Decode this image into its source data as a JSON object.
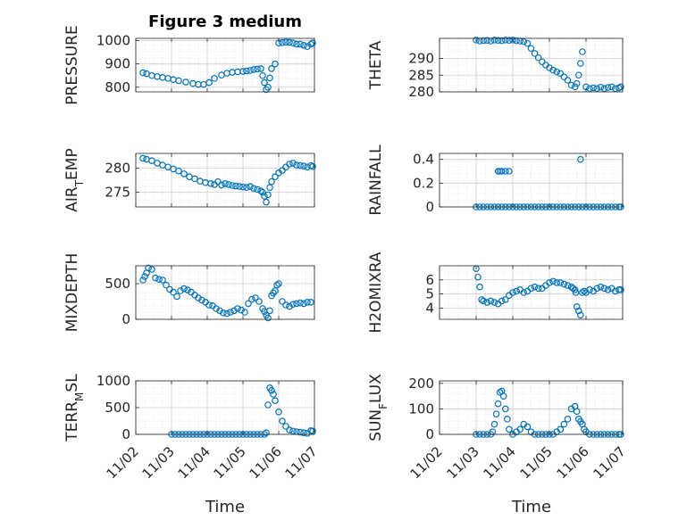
{
  "figure": {
    "title": "Figure 3 medium",
    "x_label": "Time"
  },
  "colors": {
    "marker": "#0072BD",
    "axis": "#262626",
    "grid": "#dcdcdc",
    "background": "#ffffff"
  },
  "chart_data": [
    {
      "type": "scatter",
      "ylabel": "PRESSURE",
      "title": "Figure 3 medium",
      "xlim": [
        0,
        5
      ],
      "ylim": [
        780,
        1010
      ],
      "yticks": [
        800,
        900,
        1000
      ],
      "xticks": [
        "11/02",
        "11/03",
        "11/04",
        "11/05",
        "11/06",
        "11/07"
      ],
      "show_xticklabels": false,
      "grid": true,
      "series": [
        {
          "x": [
            0.2,
            0.3,
            0.45,
            0.6,
            0.75,
            0.9,
            1.05,
            1.2,
            1.4,
            1.6,
            1.75,
            1.9,
            2.05,
            2.2,
            2.4,
            2.55,
            2.7,
            2.85,
            3.0,
            3.1,
            3.2,
            3.3,
            3.4,
            3.5,
            3.55,
            3.6,
            3.65,
            3.7,
            3.75,
            3.8,
            3.9,
            4.0,
            4.1,
            4.2,
            4.3,
            4.4,
            4.5,
            4.6,
            4.7,
            4.8,
            4.9,
            4.95
          ],
          "y": [
            862,
            858,
            850,
            846,
            842,
            838,
            833,
            828,
            822,
            816,
            812,
            812,
            820,
            838,
            852,
            860,
            864,
            866,
            868,
            870,
            872,
            876,
            878,
            880,
            850,
            820,
            790,
            800,
            840,
            880,
            900,
            990,
            992,
            994,
            993,
            990,
            985,
            985,
            980,
            975,
            985,
            990
          ]
        }
      ]
    },
    {
      "type": "scatter",
      "ylabel": "THETA",
      "xlim": [
        0,
        5
      ],
      "ylim": [
        280,
        296
      ],
      "yticks": [
        280,
        285,
        290
      ],
      "xticks": [
        "11/02",
        "11/03",
        "11/04",
        "11/05",
        "11/06",
        "11/07"
      ],
      "show_xticklabels": false,
      "grid": true,
      "series": [
        {
          "x": [
            1.0,
            1.1,
            1.2,
            1.3,
            1.4,
            1.5,
            1.6,
            1.7,
            1.8,
            1.9,
            2.0,
            2.1,
            2.2,
            2.3,
            2.4,
            2.5,
            2.6,
            2.7,
            2.8,
            2.9,
            3.0,
            3.1,
            3.2,
            3.3,
            3.4,
            3.5,
            3.6,
            3.7,
            3.75,
            3.8,
            3.85,
            3.9,
            4.0,
            4.1,
            4.2,
            4.3,
            4.4,
            4.5,
            4.6,
            4.7,
            4.8,
            4.9,
            4.95
          ],
          "y": [
            295.5,
            295.2,
            295.3,
            295.4,
            295.2,
            295.5,
            295.4,
            295.3,
            295.5,
            295.4,
            295.5,
            295.3,
            295.2,
            295.0,
            294.5,
            293.0,
            291.5,
            290.2,
            289.0,
            288.0,
            287.2,
            286.5,
            286.0,
            285.5,
            284.5,
            283.5,
            282.0,
            281.5,
            282.5,
            285.0,
            288.5,
            292.0,
            281.5,
            281.0,
            281.2,
            281.0,
            281.4,
            281.0,
            281.3,
            281.5,
            281.0,
            281.2,
            281.5
          ]
        }
      ]
    },
    {
      "type": "scatter",
      "ylabel": "AIR_TEMP",
      "xlim": [
        0,
        5
      ],
      "ylim": [
        272,
        283
      ],
      "yticks": [
        275,
        280
      ],
      "xticks": [
        "11/02",
        "11/03",
        "11/04",
        "11/05",
        "11/06",
        "11/07"
      ],
      "show_xticklabels": false,
      "grid": true,
      "series": [
        {
          "x": [
            0.2,
            0.3,
            0.45,
            0.6,
            0.75,
            0.9,
            1.05,
            1.2,
            1.35,
            1.5,
            1.65,
            1.8,
            1.95,
            2.1,
            2.2,
            2.3,
            2.4,
            2.5,
            2.6,
            2.7,
            2.8,
            2.9,
            3.0,
            3.1,
            3.2,
            3.3,
            3.4,
            3.5,
            3.55,
            3.6,
            3.65,
            3.7,
            3.75,
            3.8,
            3.9,
            4.0,
            4.1,
            4.2,
            4.3,
            4.4,
            4.5,
            4.6,
            4.7,
            4.8,
            4.9,
            4.95
          ],
          "y": [
            282.0,
            281.8,
            281.5,
            281.0,
            280.6,
            280.2,
            279.8,
            279.4,
            278.8,
            278.2,
            277.8,
            277.3,
            277.0,
            276.8,
            276.6,
            277.2,
            276.5,
            276.8,
            276.6,
            276.4,
            276.3,
            276.2,
            276.1,
            276.0,
            276.2,
            275.8,
            275.6,
            275.3,
            275.0,
            274.2,
            273.0,
            274.5,
            276.0,
            277.2,
            278.2,
            279.0,
            279.5,
            280.2,
            280.8,
            281.0,
            280.6,
            280.5,
            280.4,
            280.2,
            280.5,
            280.3
          ]
        }
      ]
    },
    {
      "type": "scatter",
      "ylabel": "RAINFALL",
      "xlim": [
        0,
        5
      ],
      "ylim": [
        0,
        0.45
      ],
      "yticks": [
        0,
        0.2,
        0.4
      ],
      "xticks": [
        "11/02",
        "11/03",
        "11/04",
        "11/05",
        "11/06",
        "11/07"
      ],
      "show_xticklabels": false,
      "grid": true,
      "series": [
        {
          "x": [
            1.0,
            1.1,
            1.2,
            1.3,
            1.4,
            1.5,
            1.6,
            1.7,
            1.8,
            1.9,
            2.0,
            2.1,
            2.2,
            2.3,
            2.4,
            2.5,
            2.6,
            2.7,
            2.8,
            2.9,
            3.0,
            3.1,
            3.2,
            3.3,
            3.4,
            3.5,
            3.6,
            3.7,
            3.8,
            3.9,
            4.0,
            4.1,
            4.2,
            4.3,
            4.4,
            4.5,
            4.6,
            4.7,
            4.8,
            4.9,
            4.95,
            1.6,
            1.65,
            1.7,
            1.8,
            1.9,
            3.85
          ],
          "y": [
            0,
            0,
            0,
            0,
            0,
            0,
            0,
            0,
            0,
            0,
            0,
            0,
            0,
            0,
            0,
            0,
            0,
            0,
            0,
            0,
            0,
            0,
            0,
            0,
            0,
            0,
            0,
            0,
            0,
            0,
            0,
            0,
            0,
            0,
            0,
            0,
            0,
            0,
            0,
            0,
            0,
            0.3,
            0.3,
            0.3,
            0.3,
            0.3,
            0.4
          ]
        }
      ]
    },
    {
      "type": "scatter",
      "ylabel": "MIXDEPTH",
      "xlim": [
        0,
        5
      ],
      "ylim": [
        0,
        750
      ],
      "yticks": [
        0,
        500
      ],
      "xticks": [
        "11/02",
        "11/03",
        "11/04",
        "11/05",
        "11/06",
        "11/07"
      ],
      "show_xticklabels": false,
      "grid": true,
      "series": [
        {
          "x": [
            0.2,
            0.25,
            0.3,
            0.35,
            0.45,
            0.55,
            0.65,
            0.75,
            0.85,
            0.95,
            1.05,
            1.15,
            1.25,
            1.35,
            1.45,
            1.55,
            1.65,
            1.75,
            1.85,
            1.95,
            2.05,
            2.15,
            2.25,
            2.35,
            2.45,
            2.55,
            2.65,
            2.75,
            2.85,
            2.95,
            3.05,
            3.15,
            3.25,
            3.35,
            3.45,
            3.55,
            3.6,
            3.65,
            3.7,
            3.75,
            3.8,
            3.85,
            3.9,
            3.95,
            4.0,
            4.1,
            4.2,
            4.3,
            4.4,
            4.5,
            4.6,
            4.7,
            4.8,
            4.9
          ],
          "y": [
            550,
            600,
            650,
            720,
            700,
            580,
            560,
            550,
            480,
            420,
            380,
            320,
            400,
            430,
            410,
            380,
            340,
            300,
            270,
            240,
            200,
            190,
            150,
            120,
            90,
            80,
            100,
            120,
            150,
            130,
            100,
            220,
            280,
            300,
            250,
            150,
            110,
            60,
            20,
            120,
            330,
            370,
            400,
            480,
            500,
            250,
            200,
            180,
            210,
            220,
            230,
            220,
            240,
            240
          ]
        }
      ]
    },
    {
      "type": "scatter",
      "ylabel": "H2OMIXRA",
      "xlim": [
        0,
        5
      ],
      "ylim": [
        3.2,
        7.0
      ],
      "yticks": [
        4,
        5,
        6
      ],
      "xticks": [
        "11/02",
        "11/03",
        "11/04",
        "11/05",
        "11/06",
        "11/07"
      ],
      "show_xticklabels": false,
      "grid": true,
      "series": [
        {
          "x": [
            1.0,
            1.05,
            1.1,
            1.15,
            1.2,
            1.3,
            1.4,
            1.5,
            1.6,
            1.7,
            1.8,
            1.9,
            2.0,
            2.1,
            2.2,
            2.3,
            2.4,
            2.5,
            2.6,
            2.7,
            2.8,
            2.9,
            3.0,
            3.1,
            3.2,
            3.3,
            3.4,
            3.5,
            3.6,
            3.65,
            3.7,
            3.72,
            3.75,
            3.8,
            3.85,
            3.9,
            3.95,
            4.0,
            4.1,
            4.2,
            4.3,
            4.4,
            4.5,
            4.6,
            4.7,
            4.8,
            4.9,
            4.95
          ],
          "y": [
            6.8,
            6.2,
            5.5,
            4.6,
            4.5,
            4.4,
            4.5,
            4.4,
            4.3,
            4.5,
            4.6,
            4.9,
            5.1,
            5.2,
            5.3,
            5.1,
            5.2,
            5.4,
            5.5,
            5.4,
            5.4,
            5.6,
            5.8,
            5.9,
            5.8,
            5.8,
            5.7,
            5.6,
            5.5,
            5.4,
            5.3,
            5.1,
            4.1,
            3.8,
            3.5,
            5.1,
            5.2,
            5.1,
            5.3,
            5.2,
            5.4,
            5.5,
            5.4,
            5.3,
            5.4,
            5.2,
            5.3,
            5.3
          ]
        }
      ]
    },
    {
      "type": "scatter",
      "ylabel": "TERR_MSL",
      "xlim": [
        0,
        5
      ],
      "ylim": [
        0,
        1000
      ],
      "yticks": [
        0,
        500,
        1000
      ],
      "xticks": [
        "11/02",
        "11/03",
        "11/04",
        "11/05",
        "11/06",
        "11/07"
      ],
      "show_xticklabels": false,
      "grid": true,
      "series": [
        {
          "x": [
            1.0,
            1.1,
            1.2,
            1.3,
            1.4,
            1.5,
            1.6,
            1.7,
            1.8,
            1.9,
            2.0,
            2.1,
            2.2,
            2.3,
            2.4,
            2.5,
            2.6,
            2.7,
            2.8,
            2.9,
            3.0,
            3.1,
            3.2,
            3.3,
            3.4,
            3.5,
            3.6,
            3.65,
            3.7,
            3.75,
            3.8,
            3.85,
            3.9,
            4.0,
            4.1,
            4.2,
            4.3,
            4.4,
            4.5,
            4.6,
            4.7,
            4.8,
            4.9,
            4.95
          ],
          "y": [
            0,
            0,
            0,
            0,
            0,
            0,
            0,
            0,
            0,
            0,
            0,
            0,
            0,
            0,
            0,
            0,
            0,
            0,
            0,
            0,
            0,
            0,
            0,
            0,
            0,
            0,
            0,
            30,
            550,
            870,
            820,
            750,
            630,
            420,
            250,
            150,
            80,
            60,
            50,
            40,
            30,
            20,
            70,
            60
          ]
        }
      ]
    },
    {
      "type": "scatter",
      "ylabel": "SUN_FLUX",
      "xlim": [
        0,
        5
      ],
      "ylim": [
        0,
        210
      ],
      "yticks": [
        0,
        100,
        200
      ],
      "xticks": [
        "11/02",
        "11/03",
        "11/04",
        "11/05",
        "11/06",
        "11/07"
      ],
      "show_xticklabels": true,
      "grid": true,
      "series": [
        {
          "x": [
            1.0,
            1.1,
            1.2,
            1.3,
            1.4,
            1.45,
            1.5,
            1.55,
            1.6,
            1.65,
            1.7,
            1.75,
            1.8,
            1.85,
            1.9,
            2.0,
            2.1,
            2.2,
            2.3,
            2.4,
            2.5,
            2.6,
            2.7,
            2.8,
            2.9,
            3.0,
            3.1,
            3.2,
            3.3,
            3.4,
            3.5,
            3.6,
            3.7,
            3.75,
            3.8,
            3.85,
            3.9,
            3.95,
            4.0,
            4.1,
            4.2,
            4.3,
            4.4,
            4.5,
            4.6,
            4.7,
            4.8,
            4.9,
            4.95
          ],
          "y": [
            0,
            0,
            0,
            0,
            0,
            10,
            40,
            80,
            120,
            165,
            170,
            150,
            100,
            60,
            20,
            0,
            10,
            20,
            40,
            30,
            10,
            0,
            0,
            0,
            0,
            0,
            0,
            10,
            20,
            40,
            60,
            100,
            110,
            90,
            60,
            50,
            40,
            20,
            10,
            0,
            0,
            0,
            0,
            0,
            0,
            0,
            0,
            0,
            0
          ]
        }
      ]
    }
  ]
}
